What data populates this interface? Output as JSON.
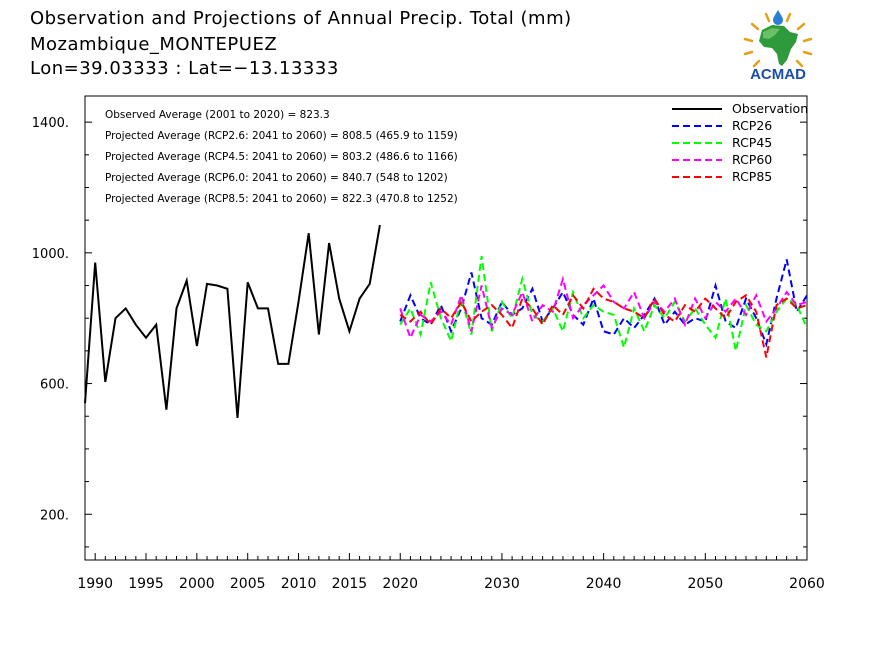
{
  "header": {
    "title": "Observation and Projections of Annual Precip. Total (mm)",
    "location": "Mozambique_MONTEPUEZ",
    "coords": "Lon=39.03333 : Lat=−13.13333"
  },
  "logo": {
    "text": "ACMAD",
    "icon": "acmad-africa-logo"
  },
  "colors": {
    "observation": "#000000",
    "RCP26": "#0000ff",
    "RCP45": "#00ff00",
    "RCP60": "#ff00ff",
    "RCP85": "#ff0000"
  },
  "chart_data": {
    "type": "line",
    "xlim": [
      1989,
      2060
    ],
    "ylim": [
      60,
      1480
    ],
    "y_ticks": [
      200,
      600,
      1000,
      1400
    ],
    "y_tick_labels": [
      "200.",
      "600.",
      "1000.",
      "1400."
    ],
    "x_ticks": [
      1990,
      1995,
      2000,
      2005,
      2010,
      2015,
      2020,
      2030,
      2040,
      2050,
      2060
    ],
    "x_tick_labels": [
      "1990",
      "1995",
      "2000",
      "2005",
      "2010",
      "2015",
      "2020",
      "2030",
      "2040",
      "2050",
      "2060"
    ],
    "grid": false,
    "legend_position": "top-right",
    "annotations": [
      "Observed Average (2001 to 2020) = 823.3",
      "Projected Average (RCP2.6: 2041 to 2060) = 808.5 (465.9 to 1159)",
      "Projected Average (RCP4.5: 2041 to 2060) = 803.2 (486.6 to 1166)",
      "Projected Average (RCP6.0: 2041 to 2060) = 840.7 (548 to 1202)",
      "Projected Average (RCP8.5: 2041 to 2060) = 822.3 (470.8 to 1252)"
    ],
    "series": [
      {
        "name": "Observation",
        "style": "solid",
        "x": [
          1989,
          1990,
          1991,
          1992,
          1993,
          1994,
          1995,
          1996,
          1997,
          1998,
          1999,
          2000,
          2001,
          2002,
          2003,
          2004,
          2005,
          2006,
          2007,
          2008,
          2009,
          2010,
          2011,
          2012,
          2013,
          2014,
          2015,
          2016,
          2017,
          2018,
          2019,
          2020
        ],
        "y": [
          540,
          970,
          605,
          800,
          830,
          780,
          740,
          780,
          520,
          830,
          915,
          715,
          905,
          900,
          890,
          495,
          910,
          830,
          830,
          660,
          660,
          850,
          1060,
          750,
          1030,
          860,
          760,
          860,
          905,
          1085,
          null,
          null
        ]
      },
      {
        "name": "RCP26",
        "style": "dashed",
        "x": [
          2020,
          2021,
          2022,
          2023,
          2024,
          2025,
          2026,
          2027,
          2028,
          2029,
          2030,
          2031,
          2032,
          2033,
          2034,
          2035,
          2036,
          2037,
          2038,
          2039,
          2040,
          2041,
          2042,
          2043,
          2044,
          2045,
          2046,
          2047,
          2048,
          2049,
          2050,
          2051,
          2052,
          2053,
          2054,
          2055,
          2056,
          2057,
          2058,
          2059,
          2060
        ],
        "y": [
          790,
          870,
          800,
          780,
          840,
          760,
          830,
          940,
          800,
          780,
          850,
          810,
          830,
          890,
          790,
          830,
          880,
          810,
          780,
          860,
          760,
          750,
          800,
          770,
          810,
          860,
          780,
          820,
          780,
          800,
          790,
          900,
          790,
          770,
          860,
          800,
          720,
          860,
          980,
          820,
          870
        ]
      },
      {
        "name": "RCP45",
        "style": "dashed",
        "x": [
          2020,
          2021,
          2022,
          2023,
          2024,
          2025,
          2026,
          2027,
          2028,
          2029,
          2030,
          2031,
          2032,
          2033,
          2034,
          2035,
          2036,
          2037,
          2038,
          2039,
          2040,
          2041,
          2042,
          2043,
          2044,
          2045,
          2046,
          2047,
          2048,
          2049,
          2050,
          2051,
          2052,
          2053,
          2054,
          2055,
          2056,
          2057,
          2058,
          2059,
          2060
        ],
        "y": [
          780,
          830,
          750,
          910,
          800,
          730,
          860,
          750,
          990,
          760,
          850,
          800,
          920,
          810,
          790,
          830,
          760,
          880,
          800,
          840,
          820,
          810,
          710,
          830,
          760,
          840,
          800,
          850,
          790,
          830,
          780,
          740,
          860,
          700,
          840,
          780,
          760,
          820,
          860,
          840,
          770
        ]
      },
      {
        "name": "RCP60",
        "style": "dashed",
        "x": [
          2020,
          2021,
          2022,
          2023,
          2024,
          2025,
          2026,
          2027,
          2028,
          2029,
          2030,
          2031,
          2032,
          2033,
          2034,
          2035,
          2036,
          2037,
          2038,
          2039,
          2040,
          2041,
          2042,
          2043,
          2044,
          2045,
          2046,
          2047,
          2048,
          2049,
          2050,
          2051,
          2052,
          2053,
          2054,
          2055,
          2056,
          2057,
          2058,
          2059,
          2060
        ],
        "y": [
          830,
          740,
          810,
          790,
          820,
          780,
          870,
          760,
          900,
          770,
          830,
          810,
          880,
          790,
          840,
          820,
          920,
          800,
          840,
          870,
          900,
          850,
          830,
          880,
          800,
          850,
          820,
          860,
          780,
          860,
          800,
          850,
          820,
          860,
          810,
          870,
          790,
          830,
          880,
          840,
          850
        ]
      },
      {
        "name": "RCP85",
        "style": "dashed",
        "x": [
          2020,
          2021,
          2022,
          2023,
          2024,
          2025,
          2026,
          2027,
          2028,
          2029,
          2030,
          2031,
          2032,
          2033,
          2034,
          2035,
          2036,
          2037,
          2038,
          2039,
          2040,
          2041,
          2042,
          2043,
          2044,
          2045,
          2046,
          2047,
          2048,
          2049,
          2050,
          2051,
          2052,
          2053,
          2054,
          2055,
          2056,
          2057,
          2058,
          2059,
          2060
        ],
        "y": [
          810,
          790,
          820,
          780,
          830,
          800,
          850,
          790,
          820,
          840,
          810,
          770,
          860,
          830,
          780,
          840,
          810,
          870,
          830,
          890,
          860,
          850,
          830,
          820,
          800,
          860,
          810,
          790,
          840,
          820,
          860,
          830,
          800,
          850,
          870,
          820,
          680,
          840,
          860,
          830,
          840
        ]
      }
    ]
  }
}
